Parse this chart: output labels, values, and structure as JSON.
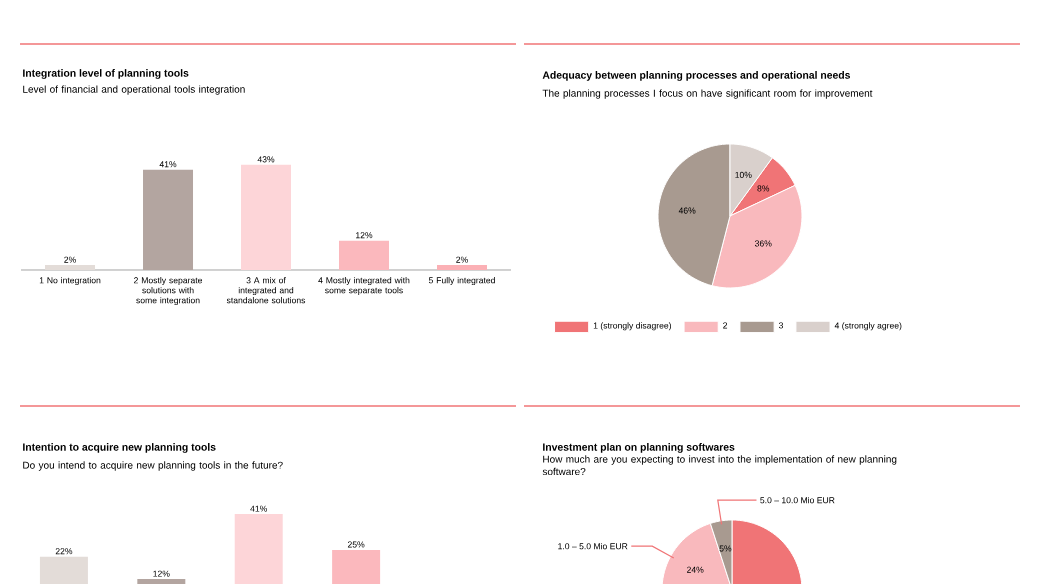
{
  "chart_data": [
    {
      "type": "bar",
      "title": "Integration level of planning tools",
      "subtitle": "Level of financial and operational tools integration",
      "categories": [
        "1 No integration",
        "2 Mostly separate solutions with some integration",
        "3 A mix of integrated and standalone solutions",
        "4 Mostly integrated with some separate tools",
        "5 Fully integrated"
      ],
      "values": [
        2,
        41,
        43,
        12,
        2
      ],
      "value_labels": [
        "2%",
        "41%",
        "43%",
        "12%",
        "2%"
      ],
      "colors": [
        "#e3dcd8",
        "#b3a5a0",
        "#fdd5d8",
        "#fbb8bd",
        "#fbb0b5"
      ]
    },
    {
      "type": "pie",
      "title": "Adequacy between planning processes and operational needs",
      "subtitle": "The planning processes I focus on have significant room for improvement",
      "categories": [
        "1 (strongly disagree)",
        "2",
        "3",
        "4 (strongly agree)"
      ],
      "values": [
        8,
        36,
        46,
        10
      ],
      "value_labels": [
        "8%",
        "36%",
        "46%",
        "10%"
      ],
      "colors": [
        "#f07476",
        "#f9b9bd",
        "#a89a90",
        "#d9d0cc"
      ],
      "legend": "bottom"
    },
    {
      "type": "bar",
      "title": "Intention to acquire new planning tools",
      "subtitle": "Do you intend to acquire new planning tools in the future?",
      "categories": [
        null,
        null,
        null,
        null
      ],
      "values": [
        22,
        12,
        41,
        25
      ],
      "value_labels": [
        "22%",
        "12%",
        "41%",
        "25%"
      ],
      "colors": [
        "#e3dcd8",
        "#b3a5a0",
        "#fdd5d8",
        "#fbb8bd"
      ]
    },
    {
      "type": "pie",
      "title": "Investment plan on planning softwares",
      "subtitle": "How much are you expecting to invest into the implementation of new planning software?",
      "categories": [
        null,
        "1.0 – 5.0 Mio EUR",
        "5.0 – 10.0 Mio EUR"
      ],
      "values": [
        71,
        24,
        5
      ],
      "value_labels": [
        null,
        "24%",
        "5%"
      ],
      "colors": [
        "#f07476",
        "#f9b9bd",
        "#a89a90"
      ]
    }
  ]
}
